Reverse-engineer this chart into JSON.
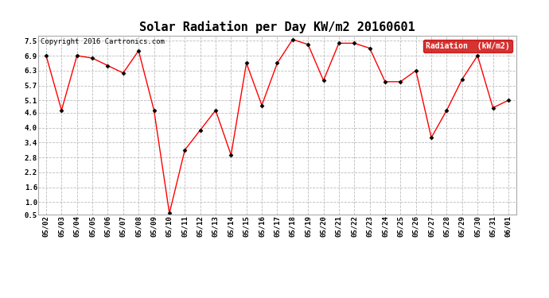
{
  "title": "Solar Radiation per Day KW/m2 20160601",
  "copyright_text": "Copyright 2016 Cartronics.com",
  "legend_label": "Radiation  (kW/m2)",
  "dates": [
    "05/02",
    "05/03",
    "05/04",
    "05/05",
    "05/06",
    "05/07",
    "05/08",
    "05/09",
    "05/10",
    "05/11",
    "05/12",
    "05/13",
    "05/14",
    "05/15",
    "05/16",
    "05/17",
    "05/18",
    "05/19",
    "05/20",
    "05/21",
    "05/22",
    "05/23",
    "05/24",
    "05/25",
    "05/26",
    "05/27",
    "05/28",
    "05/29",
    "05/30",
    "05/31",
    "06/01"
  ],
  "values": [
    6.9,
    4.7,
    6.9,
    6.8,
    6.5,
    6.2,
    7.1,
    4.7,
    0.55,
    3.1,
    3.9,
    4.7,
    2.9,
    6.6,
    4.9,
    6.6,
    7.55,
    7.35,
    5.9,
    7.4,
    7.4,
    7.2,
    5.85,
    5.85,
    6.3,
    3.6,
    4.7,
    5.95,
    6.9,
    4.8,
    5.1
  ],
  "line_color": "red",
  "marker": "D",
  "marker_size": 2.5,
  "marker_color": "black",
  "bg_color": "#ffffff",
  "grid_color": "#bbbbbb",
  "ylim": [
    0.5,
    7.7
  ],
  "yticks": [
    0.5,
    1.0,
    1.6,
    2.2,
    2.8,
    3.4,
    4.0,
    4.6,
    5.1,
    5.7,
    6.3,
    6.9,
    7.5
  ],
  "title_fontsize": 11,
  "tick_fontsize": 6.5,
  "copyright_fontsize": 6.5,
  "legend_bg": "#cc0000",
  "legend_text_color": "#ffffff",
  "legend_fontsize": 7
}
